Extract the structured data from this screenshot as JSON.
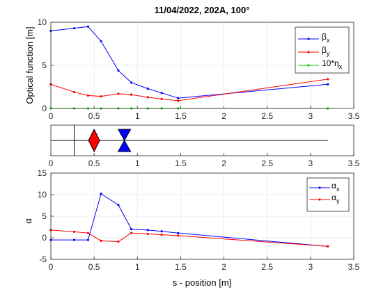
{
  "colors": {
    "beta_x": "#0000ff",
    "beta_y": "#ff0000",
    "eta": "#00cc00",
    "alpha_x": "#0000ff",
    "alpha_y": "#ff0000",
    "element_red": "#ff0000",
    "element_blue": "#0000ff",
    "grid": "#e6e6e6"
  },
  "chart_data": [
    {
      "type": "line",
      "title": "11/04/2022, 202A, 100°",
      "xlabel": "",
      "ylabel": "Optical function [m]",
      "xlim": [
        0,
        3.5
      ],
      "ylim": [
        0,
        10
      ],
      "xticks": [
        "0",
        "0.5",
        "1",
        "1.5",
        "2",
        "2.5",
        "3",
        "3.5"
      ],
      "yticks": [
        "0",
        "5",
        "10"
      ],
      "grid": true,
      "legend_position": "top-right",
      "series": [
        {
          "name_main": "β",
          "name_sub": "x",
          "color_key": "beta_x",
          "x": [
            0,
            0.27,
            0.43,
            0.58,
            0.78,
            0.93,
            1.12,
            1.28,
            1.47,
            3.2
          ],
          "y": [
            9.0,
            9.3,
            9.5,
            7.8,
            4.4,
            3.0,
            2.3,
            1.8,
            1.2,
            2.8
          ]
        },
        {
          "name_main": "β",
          "name_sub": "y",
          "color_key": "beta_y",
          "x": [
            0,
            0.27,
            0.43,
            0.58,
            0.78,
            0.93,
            1.12,
            1.28,
            1.47,
            3.2
          ],
          "y": [
            2.8,
            1.9,
            1.5,
            1.4,
            1.7,
            1.6,
            1.3,
            1.1,
            0.9,
            3.4
          ]
        },
        {
          "name_main": "10*η",
          "name_sub": "x",
          "color_key": "eta",
          "x": [
            0,
            0.27,
            0.43,
            0.58,
            0.78,
            0.93,
            1.12,
            1.28,
            1.47,
            3.2
          ],
          "y": [
            0,
            0,
            0,
            0,
            0,
            0,
            0,
            0,
            0,
            0
          ]
        }
      ]
    },
    {
      "type": "lattice",
      "xlim": [
        0,
        3.5
      ],
      "xticks": [
        "0",
        "0.5",
        "1",
        "1.5",
        "2",
        "2.5",
        "3",
        "3.5"
      ],
      "beamline_end": 3.2,
      "marker_positions": [
        0.27
      ],
      "elements": [
        {
          "kind": "focusing-diamond",
          "position": 0.5,
          "color_key": "element_red"
        },
        {
          "kind": "defocusing-bowtie",
          "position": 0.85,
          "color_key": "element_blue"
        }
      ]
    },
    {
      "type": "line",
      "title": "",
      "xlabel": "s - position [m]",
      "ylabel": "α",
      "xlim": [
        0,
        3.5
      ],
      "ylim": [
        -5,
        15
      ],
      "xticks": [
        "0",
        "0.5",
        "1",
        "1.5",
        "2",
        "2.5",
        "3",
        "3.5"
      ],
      "yticks": [
        "-5",
        "0",
        "5",
        "10",
        "15"
      ],
      "grid": true,
      "legend_position": "top-right",
      "series": [
        {
          "name_main": "α",
          "name_sub": "x",
          "color_key": "alpha_x",
          "x": [
            0,
            0.27,
            0.43,
            0.58,
            0.78,
            0.93,
            1.12,
            1.28,
            1.47,
            3.2
          ],
          "y": [
            -0.5,
            -0.5,
            -0.5,
            10.2,
            7.6,
            2.0,
            1.8,
            1.5,
            1.1,
            -2.0
          ]
        },
        {
          "name_main": "α",
          "name_sub": "y",
          "color_key": "alpha_y",
          "x": [
            0,
            0.27,
            0.43,
            0.58,
            0.78,
            0.93,
            1.12,
            1.28,
            1.47,
            3.2
          ],
          "y": [
            1.8,
            1.4,
            1.1,
            -0.7,
            -0.9,
            1.1,
            0.9,
            0.7,
            0.5,
            -2.0
          ]
        }
      ]
    }
  ]
}
